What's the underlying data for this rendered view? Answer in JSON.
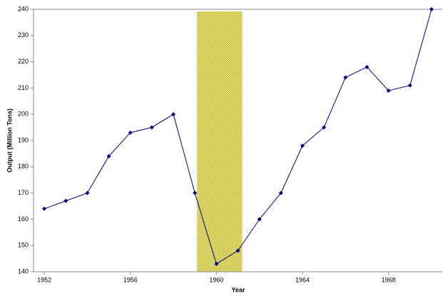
{
  "chart_data": {
    "type": "line",
    "x_label": "Year",
    "y_label": "Output (Million Tons)",
    "x": [
      1952,
      1953,
      1954,
      1955,
      1956,
      1957,
      1958,
      1959,
      1960,
      1961,
      1962,
      1963,
      1964,
      1965,
      1966,
      1967,
      1968,
      1969,
      1970
    ],
    "series": [
      {
        "color": "#000080",
        "values": [
          164,
          167,
          170,
          184,
          193,
          195,
          200,
          170,
          143,
          148,
          160,
          170,
          188,
          195,
          214,
          218,
          209,
          211,
          240
        ]
      }
    ],
    "xlim": [
      1951.5,
      1970.5
    ],
    "xticks": [
      1952,
      1956,
      1960,
      1964,
      1968
    ],
    "ylim": [
      140,
      240
    ],
    "yticks": [
      140,
      150,
      160,
      170,
      180,
      190,
      200,
      210,
      220,
      230,
      240
    ],
    "shaded_region": [
      1959.1,
      1961.2
    ],
    "shaded_color": "#b8b020"
  }
}
